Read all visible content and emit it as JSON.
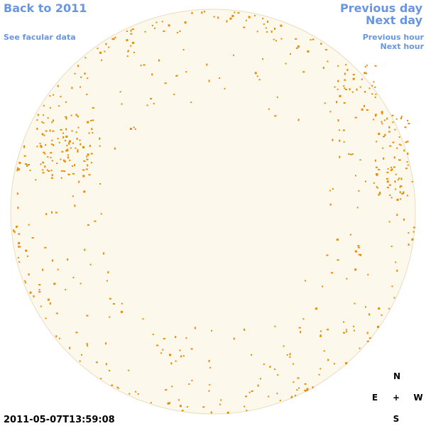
{
  "navigation": {
    "back": "Back to 2011",
    "facular": "See facular data",
    "previous_day": "Previous day",
    "next_day": "Next day",
    "previous_hour": "Previous hour",
    "next_hour": "Next hour"
  },
  "timestamp": "2011-05-07T13:59:08",
  "compass": {
    "north": "N",
    "east": "E",
    "center": "+",
    "west": "W",
    "south": "S"
  }
}
